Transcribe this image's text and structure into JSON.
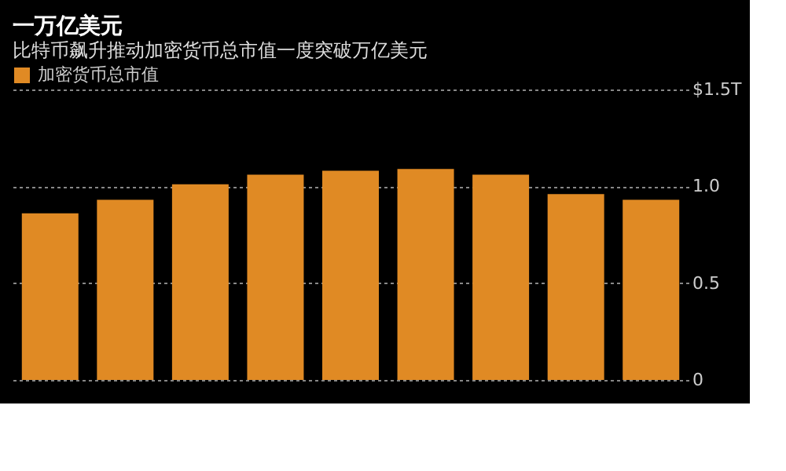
{
  "chart_data": {
    "type": "bar",
    "title": "一万亿美元",
    "subtitle": "比特币飙升推动加密货币总市值一度突破万亿美元",
    "categories": [
      null,
      null,
      null,
      null,
      null,
      null,
      null,
      null,
      null
    ],
    "series": [
      {
        "name": "加密货币总市值",
        "color": "#e08a24",
        "values": [
          0.86,
          0.93,
          1.01,
          1.06,
          1.08,
          1.09,
          1.06,
          0.96,
          0.93
        ]
      }
    ],
    "ylim": [
      0,
      1.5
    ],
    "yticks": [
      {
        "value": 0,
        "label": "0"
      },
      {
        "value": 0.5,
        "label": "0.5"
      },
      {
        "value": 1,
        "label": "1.0"
      },
      {
        "value": 1.5,
        "label": "$1.5T"
      }
    ],
    "grid": "y",
    "legend": "top left",
    "tick_labels": "y"
  }
}
